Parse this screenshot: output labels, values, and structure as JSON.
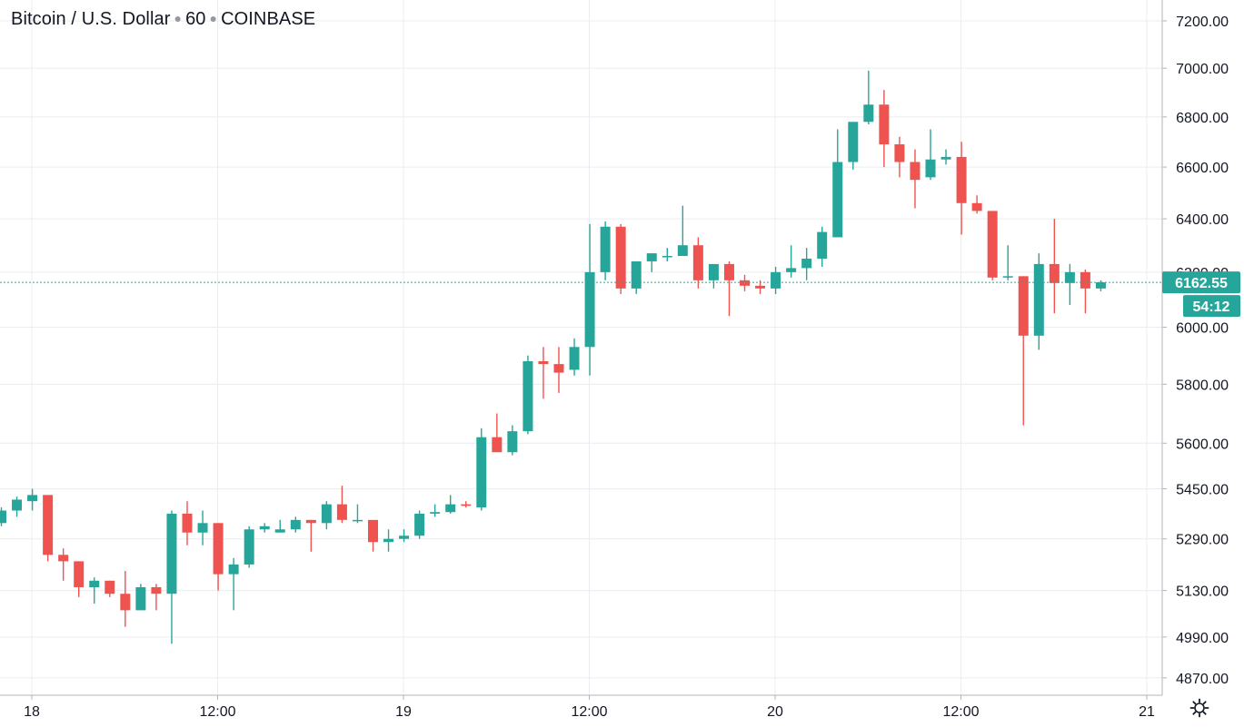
{
  "legend": {
    "symbol": "Bitcoin / U.S. Dollar",
    "interval": "60",
    "exchange": "COINBASE"
  },
  "price_scale": {
    "labels": [
      "7200.00",
      "7000.00",
      "6800.00",
      "6600.00",
      "6400.00",
      "6200.00",
      "6000.00",
      "5800.00",
      "5600.00",
      "5450.00",
      "5290.00",
      "5130.00",
      "4990.00",
      "4870.00"
    ],
    "last_price": "6162.55",
    "countdown": "54:12",
    "settings_icon": "gear-icon"
  },
  "time_scale": {
    "labels": [
      "18",
      "12:00",
      "19",
      "12:00",
      "20",
      "12:00",
      "21"
    ]
  },
  "colors": {
    "up": "#26a69a",
    "down": "#ef5350",
    "grid": "#e9ecf1",
    "axis_text": "#131722",
    "last_price_line": "#26a69a"
  },
  "chart_data": {
    "type": "candlestick",
    "title": "Bitcoin / U.S. Dollar · 60 · COINBASE",
    "interval_minutes": 60,
    "y_scale": "log",
    "ylim": [
      4820,
      7290
    ],
    "grid": true,
    "last_price": 6162.55,
    "x_ticks": [
      "18",
      "12:00",
      "19",
      "12:00",
      "20",
      "12:00",
      "21"
    ],
    "candles": [
      [
        5340,
        5390,
        5330,
        5380
      ],
      [
        5380,
        5425,
        5360,
        5415
      ],
      [
        5410,
        5450,
        5380,
        5430
      ],
      [
        5430,
        5430,
        5220,
        5240
      ],
      [
        5240,
        5260,
        5160,
        5220
      ],
      [
        5220,
        5220,
        5110,
        5140
      ],
      [
        5140,
        5170,
        5090,
        5160
      ],
      [
        5160,
        5160,
        5110,
        5120
      ],
      [
        5120,
        5190,
        5020,
        5070
      ],
      [
        5070,
        5150,
        5070,
        5140
      ],
      [
        5140,
        5150,
        5070,
        5120
      ],
      [
        5120,
        5380,
        4970,
        5370
      ],
      [
        5370,
        5410,
        5270,
        5310
      ],
      [
        5310,
        5380,
        5270,
        5340
      ],
      [
        5340,
        5340,
        5130,
        5180
      ],
      [
        5180,
        5230,
        5070,
        5210
      ],
      [
        5210,
        5330,
        5200,
        5320
      ],
      [
        5320,
        5340,
        5310,
        5330
      ],
      [
        5310,
        5350,
        5310,
        5320
      ],
      [
        5320,
        5360,
        5310,
        5350
      ],
      [
        5350,
        5350,
        5250,
        5340
      ],
      [
        5340,
        5410,
        5320,
        5400
      ],
      [
        5400,
        5460,
        5340,
        5350
      ],
      [
        5350,
        5400,
        5340,
        5350
      ],
      [
        5350,
        5350,
        5250,
        5280
      ],
      [
        5280,
        5320,
        5250,
        5290
      ],
      [
        5290,
        5320,
        5280,
        5300
      ],
      [
        5300,
        5380,
        5290,
        5370
      ],
      [
        5370,
        5400,
        5360,
        5375
      ],
      [
        5375,
        5430,
        5370,
        5400
      ],
      [
        5400,
        5410,
        5390,
        5395
      ],
      [
        5390,
        5650,
        5380,
        5620
      ],
      [
        5620,
        5700,
        5580,
        5570
      ],
      [
        5570,
        5660,
        5560,
        5640
      ],
      [
        5640,
        5900,
        5630,
        5880
      ],
      [
        5880,
        5930,
        5750,
        5870
      ],
      [
        5870,
        5930,
        5770,
        5840
      ],
      [
        5850,
        5960,
        5830,
        5930
      ],
      [
        5930,
        6380,
        5830,
        6200
      ],
      [
        6200,
        6390,
        6170,
        6370
      ],
      [
        6370,
        6380,
        6120,
        6140
      ],
      [
        6140,
        6240,
        6120,
        6240
      ],
      [
        6240,
        6270,
        6200,
        6270
      ],
      [
        6260,
        6290,
        6240,
        6260
      ],
      [
        6260,
        6450,
        6260,
        6300
      ],
      [
        6300,
        6330,
        6140,
        6170
      ],
      [
        6170,
        6230,
        6140,
        6230
      ],
      [
        6230,
        6240,
        6040,
        6170
      ],
      [
        6170,
        6190,
        6130,
        6150
      ],
      [
        6150,
        6170,
        6120,
        6140
      ],
      [
        6140,
        6220,
        6120,
        6200
      ],
      [
        6200,
        6300,
        6180,
        6215
      ],
      [
        6215,
        6290,
        6170,
        6250
      ],
      [
        6250,
        6370,
        6220,
        6350
      ],
      [
        6330,
        6750,
        6330,
        6620
      ],
      [
        6620,
        6780,
        6590,
        6780
      ],
      [
        6780,
        6990,
        6770,
        6850
      ],
      [
        6850,
        6910,
        6600,
        6690
      ],
      [
        6690,
        6720,
        6560,
        6620
      ],
      [
        6620,
        6670,
        6440,
        6550
      ],
      [
        6560,
        6750,
        6550,
        6630
      ],
      [
        6630,
        6670,
        6610,
        6640
      ],
      [
        6640,
        6700,
        6340,
        6460
      ],
      [
        6460,
        6490,
        6420,
        6430
      ],
      [
        6430,
        6430,
        6170,
        6180
      ],
      [
        6180,
        6300,
        6170,
        6185
      ],
      [
        6185,
        6185,
        5660,
        5970
      ],
      [
        5970,
        6270,
        5920,
        6230
      ],
      [
        6230,
        6400,
        6050,
        6160
      ],
      [
        6160,
        6230,
        6080,
        6200
      ],
      [
        6200,
        6210,
        6050,
        6140
      ],
      [
        6140,
        6170,
        6130,
        6162.55
      ]
    ]
  }
}
